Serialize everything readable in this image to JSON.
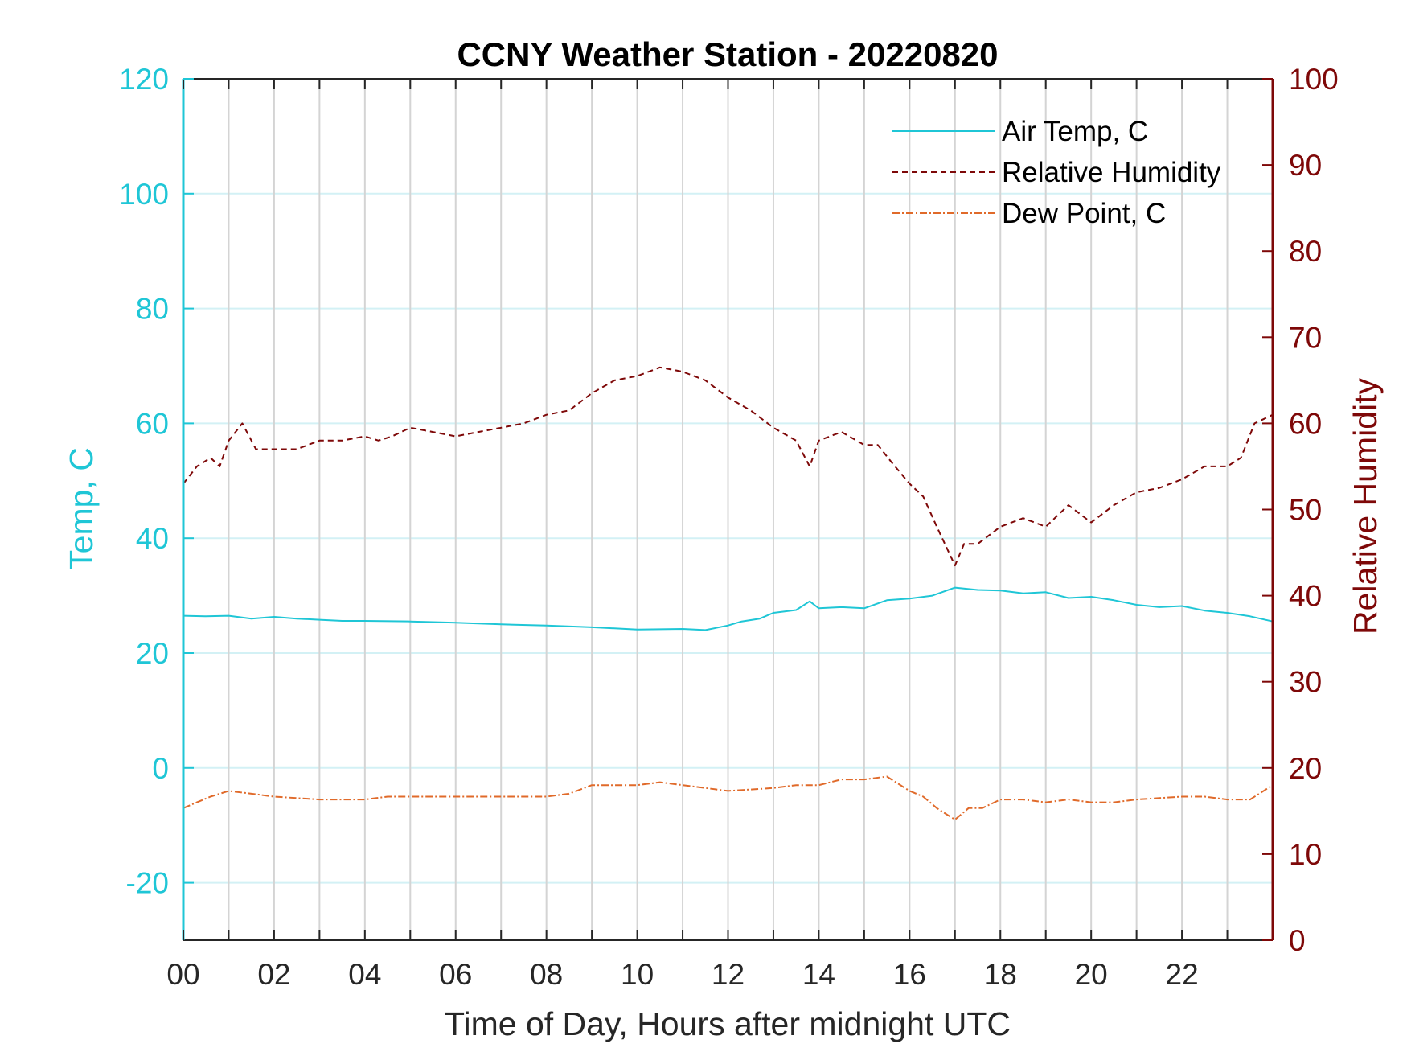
{
  "chart_data": {
    "type": "line",
    "title": "CCNY Weather Station - 20220820",
    "xlabel": "Time of Day, Hours after midnight UTC",
    "ylabel_left": "Temp, C",
    "ylabel_right": "Relative Humidity",
    "xlim": [
      0,
      24
    ],
    "ylim_left": [
      -30,
      120
    ],
    "ylim_right": [
      0,
      100
    ],
    "xticks": [
      0,
      2,
      4,
      6,
      8,
      10,
      12,
      14,
      16,
      18,
      20,
      22
    ],
    "xtick_labels": [
      "00",
      "02",
      "04",
      "06",
      "08",
      "10",
      "12",
      "14",
      "16",
      "18",
      "20",
      "22"
    ],
    "xgrid": [
      0,
      1,
      2,
      3,
      4,
      5,
      6,
      7,
      8,
      9,
      10,
      11,
      12,
      13,
      14,
      15,
      16,
      17,
      18,
      19,
      20,
      21,
      22,
      23
    ],
    "yticks_left": [
      -20,
      0,
      20,
      40,
      60,
      80,
      100,
      120
    ],
    "ytick_labels_left": [
      "-20",
      "0",
      "20",
      "40",
      "60",
      "80",
      "100",
      "120"
    ],
    "yticks_right": [
      0,
      10,
      20,
      30,
      40,
      50,
      60,
      70,
      80,
      90,
      100
    ],
    "ytick_labels_right": [
      "0",
      "10",
      "20",
      "30",
      "40",
      "50",
      "60",
      "70",
      "80",
      "90",
      "100"
    ],
    "grid": true,
    "legend_position": "top-right",
    "colors": {
      "temp_axis": "#1fc6d6",
      "rh_axis": "#7e0808",
      "air_temp": "#1fc6d6",
      "rh": "#7e0808",
      "dew_point": "#e06a2a",
      "xgrid": "#d4d4d4",
      "ygrid": "#d3f1f5"
    },
    "series": [
      {
        "name": "Air Temp, C",
        "axis": "left",
        "style": "solid",
        "x": [
          0,
          0.5,
          1,
          1.5,
          2,
          2.5,
          3,
          3.5,
          4,
          5,
          6,
          7,
          8,
          9,
          10,
          11,
          11.5,
          12,
          12.3,
          12.7,
          13,
          13.5,
          13.8,
          14,
          14.5,
          15,
          15.5,
          16,
          16.5,
          17,
          17.5,
          18,
          18.5,
          19,
          19.5,
          20,
          20.5,
          21,
          21.5,
          22,
          22.5,
          23,
          23.5,
          24
        ],
        "y": [
          26.5,
          26.4,
          26.5,
          26.0,
          26.3,
          26.0,
          25.8,
          25.6,
          25.6,
          25.5,
          25.3,
          25.0,
          24.8,
          24.5,
          24.1,
          24.2,
          24.0,
          24.8,
          25.5,
          26.0,
          27.0,
          27.5,
          29.0,
          27.8,
          28.0,
          27.8,
          29.2,
          29.5,
          30.0,
          31.4,
          31.0,
          30.9,
          30.4,
          30.6,
          29.6,
          29.8,
          29.2,
          28.4,
          28.0,
          28.2,
          27.4,
          27.0,
          26.4,
          25.5
        ]
      },
      {
        "name": "Relative Humidity",
        "axis": "right",
        "style": "dashed",
        "x": [
          0,
          0.3,
          0.6,
          0.8,
          1,
          1.3,
          1.6,
          2,
          2.5,
          3,
          3.5,
          4,
          4.3,
          4.6,
          5,
          5.5,
          6,
          6.5,
          7,
          7.5,
          8,
          8.5,
          9,
          9.5,
          10,
          10.5,
          11,
          11.5,
          12,
          12.5,
          13,
          13.5,
          13.8,
          14,
          14.5,
          15,
          15.3,
          15.6,
          16,
          16.3,
          16.6,
          17,
          17.2,
          17.5,
          18,
          18.5,
          19,
          19.5,
          20,
          20.5,
          21,
          21.5,
          22,
          22.5,
          23,
          23.3,
          23.6,
          24
        ],
        "y": [
          53,
          55,
          56,
          55,
          58,
          60,
          57,
          57,
          57,
          58,
          58,
          58.5,
          58,
          58.5,
          59.5,
          59,
          58.5,
          59,
          59.5,
          60,
          61,
          61.5,
          63.5,
          65,
          65.5,
          66.5,
          66,
          65,
          63,
          61.5,
          59.5,
          58,
          55,
          58,
          59,
          57.5,
          57.5,
          55.5,
          53,
          51.5,
          48,
          43.5,
          46,
          46,
          48,
          49,
          48,
          50.5,
          48.5,
          50.5,
          52,
          52.5,
          53.5,
          55,
          55,
          56,
          60,
          61
        ]
      },
      {
        "name": "Dew Point, C",
        "axis": "left",
        "style": "dash-dot",
        "x": [
          0,
          0.3,
          0.6,
          1,
          1.5,
          2,
          3,
          4,
          4.5,
          5,
          6,
          7,
          8,
          8.5,
          9,
          9.5,
          10,
          10.5,
          11,
          11.5,
          12,
          13,
          13.5,
          14,
          14.5,
          15,
          15.5,
          16,
          16.3,
          16.6,
          17,
          17.3,
          17.6,
          18,
          18.5,
          19,
          19.5,
          20,
          20.5,
          21,
          22,
          22.5,
          23,
          23.5,
          24
        ],
        "y": [
          -7,
          -6,
          -5,
          -4,
          -4.5,
          -5,
          -5.5,
          -5.5,
          -5,
          -5,
          -5,
          -5,
          -5,
          -4.5,
          -3,
          -3,
          -3,
          -2.5,
          -3,
          -3.5,
          -4,
          -3.5,
          -3,
          -3,
          -2,
          -2,
          -1.5,
          -4,
          -5,
          -7,
          -9,
          -7,
          -7,
          -5.5,
          -5.5,
          -6,
          -5.5,
          -6,
          -6,
          -5.5,
          -5,
          -5,
          -5.5,
          -5.5,
          -3
        ]
      }
    ]
  }
}
